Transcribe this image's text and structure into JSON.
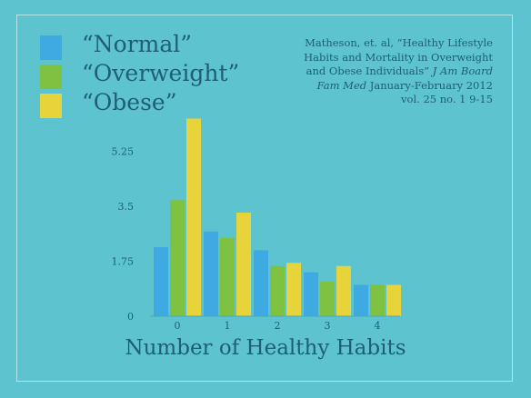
{
  "colors": {
    "normal": "#3fa9e1",
    "overweight": "#7fc241",
    "obese": "#e6d43a",
    "text": "#1f5e75"
  },
  "citation": {
    "line1": "Matheson, et. al, “Healthy Lifestyle",
    "line2": "Habits and Mortality in Overweight",
    "line3": "and Obese Individuals”",
    "journal": "J Am Board",
    "journal2": "Fam Med",
    "date": "January-February 2012",
    "volume": "vol. 25 no. 1 9-15"
  },
  "chart_data": {
    "type": "bar",
    "xlabel": "Number of Healthy Habits",
    "ylabel": "",
    "categories": [
      "0",
      "1",
      "2",
      "3",
      "4"
    ],
    "yticks": [
      "0",
      "1.75",
      "3.5",
      "5.25"
    ],
    "ylim": [
      0,
      6.4
    ],
    "grid": false,
    "legend": "top-left",
    "series": [
      {
        "name": "“Normal”",
        "values": [
          2.2,
          2.7,
          2.1,
          1.4,
          1.0
        ]
      },
      {
        "name": "“Overweight”",
        "values": [
          3.7,
          2.5,
          1.6,
          1.1,
          1.0
        ]
      },
      {
        "name": "“Obese”",
        "values": [
          6.3,
          3.3,
          1.7,
          1.6,
          1.0
        ]
      }
    ]
  }
}
